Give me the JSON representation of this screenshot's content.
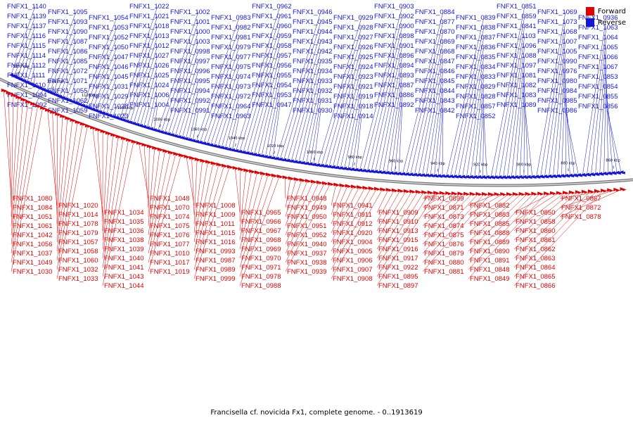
{
  "legend": {
    "forward_label": "Forward",
    "reverse_label": "Reverse",
    "forward_color": "#e00000",
    "reverse_color": "#1515d6"
  },
  "caption": "Francisella cf. novicida Fx1, complete genome. - 0..1913619",
  "ruler_labels": [
    "1160 kbp",
    "1140 kbp",
    "1120 kbp",
    "1100 kbp",
    "1080 kbp",
    "1060 kbp",
    "1040 kbp",
    "1020 kbp",
    "1000 kbp",
    "980 kbp",
    "960 kbp",
    "940 kbp",
    "920 kbp",
    "900 kbp",
    "880 kbp",
    "860 kbp"
  ],
  "genes": {
    "reverse": [
      "FNFX1_1140",
      "FNFX1_1139",
      "FNFX1_1137",
      "FNFX1_1116",
      "FNFX1_1115",
      "FNFX1_1114",
      "FNFX1_1112",
      "FNFX1_1111",
      "FNFX1_1110",
      "FNFX1_1094",
      "FNFX1_1092",
      "FNFX1_1095",
      "FNFX1_1093",
      "FNFX1_1090",
      "FNFX1_1087",
      "FNFX1_1086",
      "FNFX1_1085",
      "FNFX1_1072",
      "FNFX1_1071",
      "FNFX1_1055",
      "FNFX1_1062",
      "FNFX1_1059",
      "FNFX1_1054",
      "FNFX1_1053",
      "FNFX1_1052",
      "FNFX1_1050",
      "FNFX1_1047",
      "FNFX1_1046",
      "FNFX1_1045",
      "FNFX1_1031",
      "FNFX1_1029",
      "FNFX1_1028",
      "FNFX1_1023",
      "FNFX1_1022",
      "FNFX1_1021",
      "FNFX1_1018",
      "FNFX1_1013",
      "FNFX1_1012",
      "FNFX1_1027",
      "FNFX1_1026",
      "FNFX1_1025",
      "FNFX1_1024",
      "FNFX1_1006",
      "FNFX1_1004",
      "FNFX1_1002",
      "FNFX1_1001",
      "FNFX1_1000",
      "FNFX1_1003",
      "FNFX1_0998",
      "FNFX1_0997",
      "FNFX1_0996",
      "FNFX1_0995",
      "FNFX1_0994",
      "FNFX1_0992",
      "FNFX1_0991",
      "FNFX1_0983",
      "FNFX1_0982",
      "FNFX1_0981",
      "FNFX1_0979",
      "FNFX1_0977",
      "FNFX1_0975",
      "FNFX1_0974",
      "FNFX1_0973",
      "FNFX1_0972",
      "FNFX1_0964",
      "FNFX1_0963",
      "FNFX1_0962",
      "FNFX1_0961",
      "FNFX1_0960",
      "FNFX1_0959",
      "FNFX1_0958",
      "FNFX1_0957",
      "FNFX1_0956",
      "FNFX1_0955",
      "FNFX1_0954",
      "FNFX1_0953",
      "FNFX1_0947",
      "FNFX1_0946",
      "FNFX1_0945",
      "FNFX1_0944",
      "FNFX1_0943",
      "FNFX1_0942",
      "FNFX1_0935",
      "FNFX1_0934",
      "FNFX1_0933",
      "FNFX1_0932",
      "FNFX1_0931",
      "FNFX1_0930",
      "FNFX1_0929",
      "FNFX1_0928",
      "FNFX1_0927",
      "FNFX1_0926",
      "FNFX1_0925",
      "FNFX1_0924",
      "FNFX1_0923",
      "FNFX1_0921",
      "FNFX1_0919",
      "FNFX1_0918",
      "FNFX1_0914",
      "FNFX1_0903",
      "FNFX1_0902",
      "FNFX1_0900",
      "FNFX1_0898",
      "FNFX1_0901",
      "FNFX1_0896",
      "FNFX1_0894",
      "FNFX1_0893",
      "FNFX1_0887",
      "FNFX1_0886",
      "FNFX1_0892",
      "FNFX1_0884",
      "FNFX1_0877",
      "FNFX1_0870",
      "FNFX1_0869",
      "FNFX1_0868",
      "FNFX1_0847",
      "FNFX1_0846",
      "FNFX1_0845",
      "FNFX1_0844",
      "FNFX1_0843",
      "FNFX1_0842",
      "FNFX1_0839",
      "FNFX1_0838",
      "FNFX1_0837",
      "FNFX1_0836",
      "FNFX1_0835",
      "FNFX1_0834",
      "FNFX1_0833",
      "FNFX1_0829",
      "FNFX1_0828",
      "FNFX1_0857",
      "FNFX1_0852",
      "FNFX1_0851",
      "FNFX1_0859",
      "FNFX1_0841",
      "FNFX1_1103",
      "FNFX1_1096",
      "FNFX1_1088",
      "FNFX1_1097",
      "FNFX1_1081",
      "FNFX1_1082",
      "FNFX1_1083",
      "FNFX1_1089",
      "FNFX1_1069",
      "FNFX1_1073",
      "FNFX1_1068",
      "FNFX1_1007",
      "FNFX1_1005",
      "FNFX1_0990",
      "FNFX1_0976",
      "FNFX1_0980",
      "FNFX1_0984",
      "FNFX1_0985",
      "FNFX1_0986",
      "FNFX1_0936",
      "FNFX1_1063",
      "FNFX1_1064",
      "FNFX1_1065",
      "FNFX1_1066",
      "FNFX1_1067",
      "FNFX1_0853",
      "FNFX1_0854",
      "FNFX1_0855",
      "FNFX1_0856"
    ],
    "forward": [
      "FNFX1_1080",
      "FNFX1_1084",
      "FNFX1_1051",
      "FNFX1_1061",
      "FNFX1_1042",
      "FNFX1_1056",
      "FNFX1_1037",
      "FNFX1_1049",
      "FNFX1_1030",
      "FNFX1_1020",
      "FNFX1_1014",
      "FNFX1_1078",
      "FNFX1_1079",
      "FNFX1_1057",
      "FNFX1_1058",
      "FNFX1_1060",
      "FNFX1_1032",
      "FNFX1_1033",
      "FNFX1_1034",
      "FNFX1_1035",
      "FNFX1_1036",
      "FNFX1_1038",
      "FNFX1_1039",
      "FNFX1_1040",
      "FNFX1_1041",
      "FNFX1_1043",
      "FNFX1_1044",
      "FNFX1_1048",
      "FNFX1_1070",
      "FNFX1_1074",
      "FNFX1_1075",
      "FNFX1_1076",
      "FNFX1_1077",
      "FNFX1_1010",
      "FNFX1_1017",
      "FNFX1_1019",
      "FNFX1_1008",
      "FNFX1_1009",
      "FNFX1_1011",
      "FNFX1_1015",
      "FNFX1_1016",
      "FNFX1_0993",
      "FNFX1_0987",
      "FNFX1_0989",
      "FNFX1_0999",
      "FNFX1_0965",
      "FNFX1_0966",
      "FNFX1_0967",
      "FNFX1_0968",
      "FNFX1_0969",
      "FNFX1_0970",
      "FNFX1_0971",
      "FNFX1_0978",
      "FNFX1_0988",
      "FNFX1_0948",
      "FNFX1_0949",
      "FNFX1_0950",
      "FNFX1_0951",
      "FNFX1_0952",
      "FNFX1_0940",
      "FNFX1_0937",
      "FNFX1_0938",
      "FNFX1_0939",
      "FNFX1_0941",
      "FNFX1_0911",
      "FNFX1_0912",
      "FNFX1_0920",
      "FNFX1_0904",
      "FNFX1_0905",
      "FNFX1_0906",
      "FNFX1_0907",
      "FNFX1_0908",
      "FNFX1_0909",
      "FNFX1_0910",
      "FNFX1_0913",
      "FNFX1_0915",
      "FNFX1_0916",
      "FNFX1_0917",
      "FNFX1_0922",
      "FNFX1_0895",
      "FNFX1_0897",
      "FNFX1_0899",
      "FNFX1_0871",
      "FNFX1_0873",
      "FNFX1_0874",
      "FNFX1_0875",
      "FNFX1_0876",
      "FNFX1_0879",
      "FNFX1_0880",
      "FNFX1_0881",
      "FNFX1_0882",
      "FNFX1_0883",
      "FNFX1_0885",
      "FNFX1_0888",
      "FNFX1_0889",
      "FNFX1_0890",
      "FNFX1_0891",
      "FNFX1_0848",
      "FNFX1_0849",
      "FNFX1_0850",
      "FNFX1_0858",
      "FNFX1_0860",
      "FNFX1_0861",
      "FNFX1_0862",
      "FNFX1_0863",
      "FNFX1_0864",
      "FNFX1_0865",
      "FNFX1_0866",
      "FNFX1_0867",
      "FNFX1_0872",
      "FNFX1_0878"
    ]
  }
}
